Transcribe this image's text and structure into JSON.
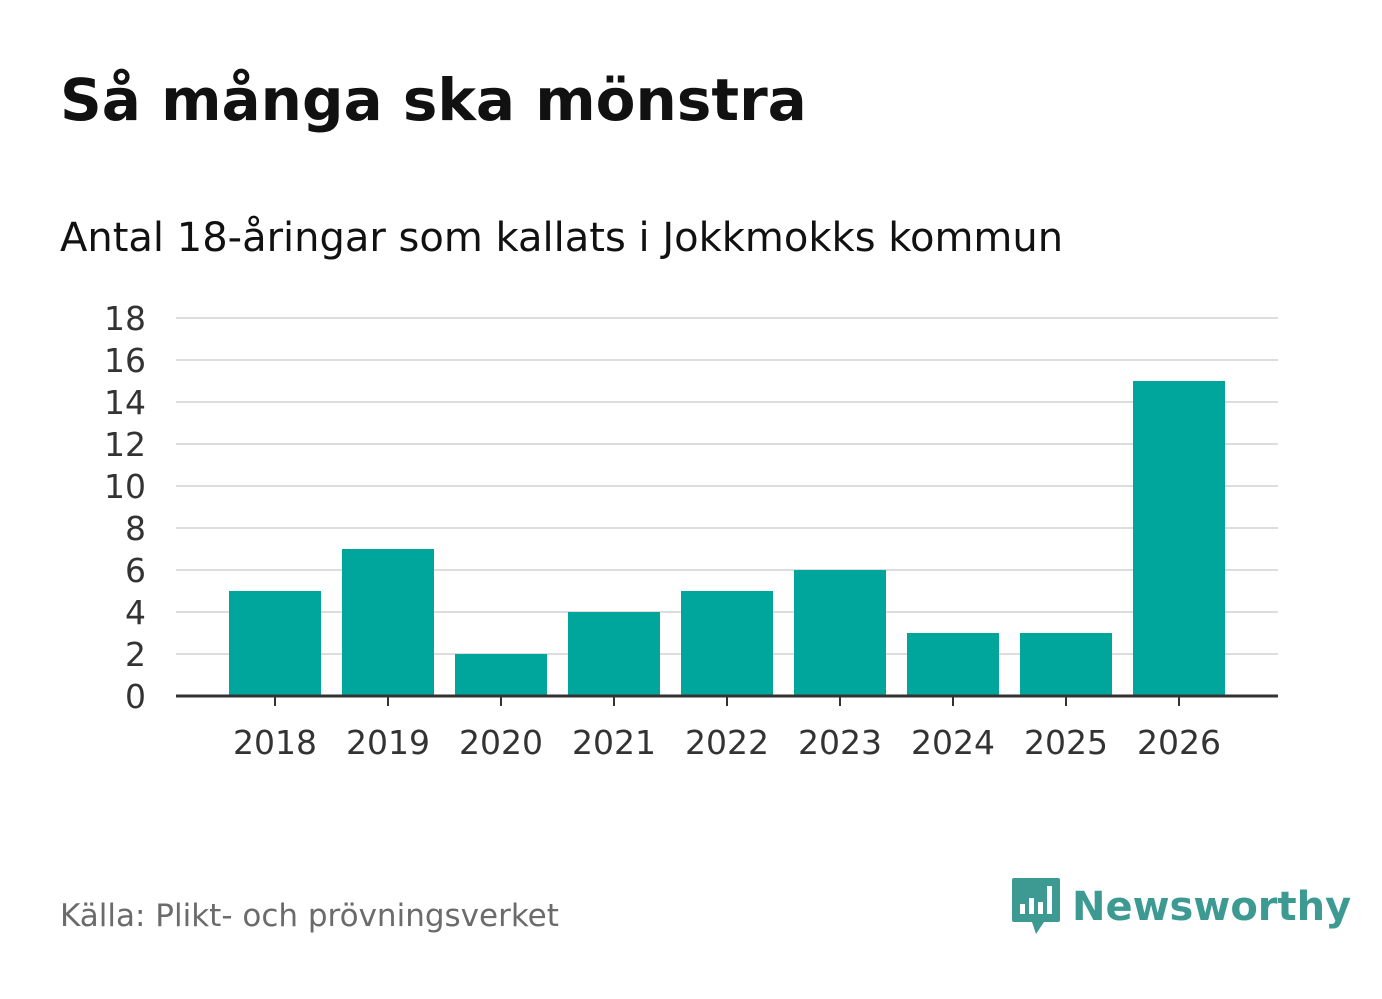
{
  "header": {
    "title": "Så många ska mönstra",
    "subtitle": "Antal 18-åringar som kallats i Jokkmokks kommun"
  },
  "footer": {
    "source": "Källa: Plikt- och prövningsverket",
    "brand": "Newsworthy"
  },
  "colors": {
    "bar": "#00a59b",
    "grid": "#dddddd",
    "axis": "#333333",
    "brand": "#3d9a92"
  },
  "icons": {
    "logo": "speech-bubble-bar-chart-icon"
  },
  "chart_data": {
    "type": "bar",
    "title": "Så många ska mönstra",
    "subtitle": "Antal 18-åringar som kallats i Jokkmokks kommun",
    "categories": [
      "2018",
      "2019",
      "2020",
      "2021",
      "2022",
      "2023",
      "2024",
      "2025",
      "2026"
    ],
    "values": [
      5,
      7,
      2,
      4,
      5,
      6,
      3,
      3,
      15
    ],
    "ylim": [
      0,
      18
    ],
    "yticks": [
      0,
      2,
      4,
      6,
      8,
      10,
      12,
      14,
      16,
      18
    ],
    "xlabel": "",
    "ylabel": "",
    "grid": true
  }
}
